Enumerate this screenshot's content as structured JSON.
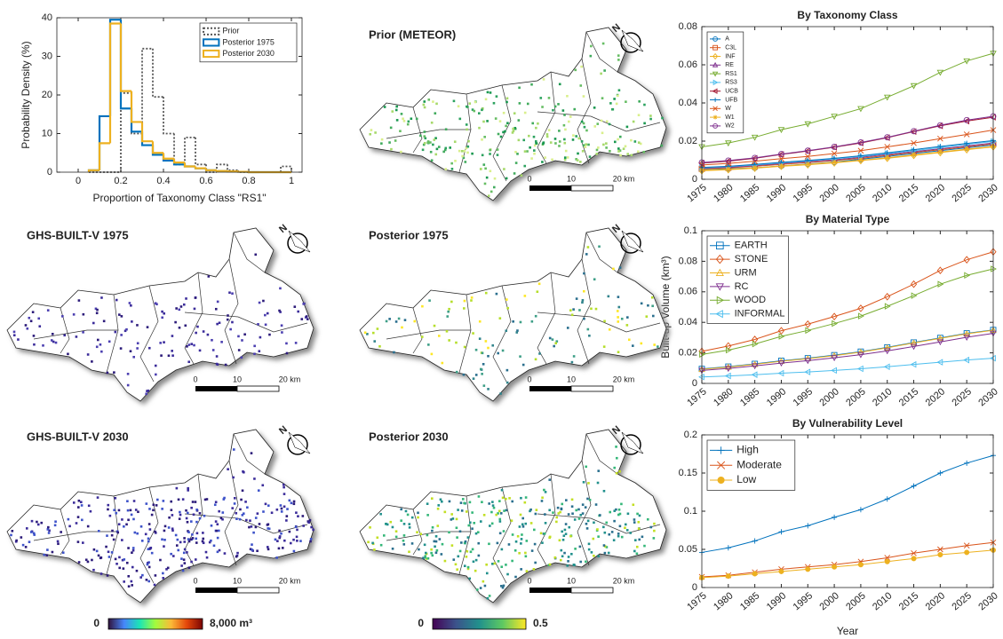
{
  "chart_data": [
    {
      "type": "histogram",
      "xlabel": "Proportion of Taxonomy Class \"RS1\"",
      "ylabel": "Probability Density (%)",
      "bins": [
        0.05,
        0.1,
        0.15,
        0.2,
        0.25,
        0.3,
        0.35,
        0.4,
        0.45,
        0.5,
        0.55,
        0.6,
        0.65,
        0.7,
        0.75,
        0.8,
        0.85,
        0.9,
        0.95,
        1
      ],
      "series": [
        {
          "name": "Prior",
          "color": "#555555",
          "linestyle": "dotted",
          "values": [
            0,
            0,
            0,
            20.5,
            10,
            32,
            19.5,
            10,
            2,
            9,
            2,
            0,
            2,
            0.5,
            0,
            0,
            0,
            0,
            1.5
          ]
        },
        {
          "name": "Posterior 1975",
          "color": "#0072BD",
          "values": [
            0.5,
            14.5,
            39.5,
            16.5,
            10.5,
            7,
            4.5,
            3,
            2,
            1.5,
            1,
            0.5,
            0.3,
            0.2,
            0.1,
            0,
            0,
            0,
            0
          ]
        },
        {
          "name": "Posterior 2030",
          "color": "#EDB120",
          "values": [
            0.5,
            7.5,
            38.5,
            21,
            13,
            8,
            5,
            3.5,
            2.5,
            1.5,
            1,
            0.5,
            0.3,
            0.2,
            0.1,
            0,
            0,
            0,
            0
          ]
        }
      ],
      "xlim": [
        -0.1,
        1.05
      ],
      "ylim": [
        0,
        40
      ],
      "xticks": [
        0,
        0.2,
        0.4,
        0.6,
        0.8,
        1
      ],
      "yticks": [
        0,
        10,
        20,
        30,
        40
      ],
      "legend": "northeast"
    },
    {
      "type": "line",
      "title": "By Taxonomy Class",
      "x": [
        1975,
        1980,
        1985,
        1990,
        1995,
        2000,
        2005,
        2010,
        2015,
        2020,
        2025,
        2030
      ],
      "series": [
        {
          "name": "A",
          "color": "#0072BD",
          "marker": "o",
          "values": [
            0.005,
            0.0055,
            0.006,
            0.007,
            0.008,
            0.009,
            0.0105,
            0.012,
            0.0135,
            0.015,
            0.0165,
            0.018
          ]
        },
        {
          "name": "C3L",
          "color": "#D95319",
          "marker": "s",
          "values": [
            0.0055,
            0.006,
            0.0068,
            0.0078,
            0.0088,
            0.0098,
            0.011,
            0.0125,
            0.014,
            0.0155,
            0.017,
            0.0185
          ]
        },
        {
          "name": "INF",
          "color": "#EDB120",
          "marker": "d",
          "values": [
            0.0045,
            0.005,
            0.0058,
            0.0068,
            0.0076,
            0.0086,
            0.0098,
            0.011,
            0.0125,
            0.014,
            0.0155,
            0.017
          ]
        },
        {
          "name": "RE",
          "color": "#7E2F8E",
          "marker": "^",
          "values": [
            0.0058,
            0.0063,
            0.0072,
            0.0082,
            0.0092,
            0.0102,
            0.0115,
            0.013,
            0.0145,
            0.016,
            0.0175,
            0.019
          ]
        },
        {
          "name": "RS1",
          "color": "#77AC30",
          "marker": "v",
          "values": [
            0.017,
            0.019,
            0.022,
            0.026,
            0.029,
            0.033,
            0.037,
            0.043,
            0.049,
            0.056,
            0.062,
            0.066
          ]
        },
        {
          "name": "RS3",
          "color": "#4DBEEE",
          "marker": ">",
          "values": [
            0.006,
            0.0066,
            0.0075,
            0.0086,
            0.0096,
            0.0107,
            0.012,
            0.0135,
            0.015,
            0.0167,
            0.0183,
            0.0198
          ]
        },
        {
          "name": "UCB",
          "color": "#A2142F",
          "marker": "<",
          "values": [
            0.0085,
            0.0095,
            0.011,
            0.013,
            0.0148,
            0.0168,
            0.019,
            0.0218,
            0.025,
            0.028,
            0.0305,
            0.0325
          ]
        },
        {
          "name": "UFB",
          "color": "#0072BD",
          "marker": "+",
          "values": [
            0.0062,
            0.0068,
            0.0078,
            0.0089,
            0.0099,
            0.011,
            0.0123,
            0.0139,
            0.0155,
            0.0172,
            0.0188,
            0.0203
          ]
        },
        {
          "name": "W",
          "color": "#D95319",
          "marker": "x",
          "values": [
            0.0075,
            0.0083,
            0.0095,
            0.0108,
            0.012,
            0.0135,
            0.015,
            0.017,
            0.019,
            0.0213,
            0.0235,
            0.0258
          ]
        },
        {
          "name": "W1",
          "color": "#EDB120",
          "marker": "*",
          "values": [
            0.0048,
            0.0053,
            0.006,
            0.007,
            0.0079,
            0.0089,
            0.01,
            0.0113,
            0.0128,
            0.0143,
            0.0158,
            0.0172
          ]
        },
        {
          "name": "W2",
          "color": "#7E2F8E",
          "marker": "o",
          "values": [
            0.0088,
            0.0098,
            0.0112,
            0.0132,
            0.015,
            0.017,
            0.0193,
            0.022,
            0.0252,
            0.0283,
            0.031,
            0.033
          ]
        }
      ],
      "xlim": [
        1975,
        2030
      ],
      "ylim": [
        0,
        0.08
      ],
      "xticks": [
        1975,
        1980,
        1985,
        1990,
        1995,
        2000,
        2005,
        2010,
        2015,
        2020,
        2025,
        2030
      ],
      "yticks": [
        0,
        0.02,
        0.04,
        0.06,
        0.08
      ],
      "legend": "northwest"
    },
    {
      "type": "line",
      "title": "By Material Type",
      "ylabel": "Built-up Volume (km³)",
      "x": [
        1975,
        1980,
        1985,
        1990,
        1995,
        2000,
        2005,
        2010,
        2015,
        2020,
        2025,
        2030
      ],
      "series": [
        {
          "name": "EARTH",
          "color": "#0072BD",
          "marker": "s",
          "values": [
            0.0095,
            0.011,
            0.0128,
            0.0148,
            0.0165,
            0.0185,
            0.0208,
            0.0236,
            0.0268,
            0.0298,
            0.0328,
            0.035
          ]
        },
        {
          "name": "STONE",
          "color": "#D95319",
          "marker": "d",
          "values": [
            0.021,
            0.0245,
            0.0288,
            0.0345,
            0.0388,
            0.0438,
            0.0492,
            0.0568,
            0.065,
            0.074,
            0.081,
            0.0862
          ]
        },
        {
          "name": "URM",
          "color": "#EDB120",
          "marker": "^",
          "values": [
            0.0092,
            0.0107,
            0.0125,
            0.0145,
            0.0162,
            0.0182,
            0.0205,
            0.0233,
            0.0265,
            0.0295,
            0.0325,
            0.0348
          ]
        },
        {
          "name": "RC",
          "color": "#7E2F8E",
          "marker": "v",
          "values": [
            0.0085,
            0.0098,
            0.0115,
            0.0133,
            0.0149,
            0.0168,
            0.0188,
            0.0213,
            0.0242,
            0.0272,
            0.0302,
            0.0328
          ]
        },
        {
          "name": "WOOD",
          "color": "#77AC30",
          "marker": ">",
          "values": [
            0.019,
            0.0218,
            0.0258,
            0.0308,
            0.0347,
            0.0392,
            0.0441,
            0.0505,
            0.0575,
            0.065,
            0.0708,
            0.075
          ]
        },
        {
          "name": "INFORMAL",
          "color": "#4DBEEE",
          "marker": "<",
          "values": [
            0.0042,
            0.0049,
            0.0057,
            0.0067,
            0.0075,
            0.0085,
            0.0096,
            0.0109,
            0.0124,
            0.0139,
            0.0153,
            0.0165
          ]
        }
      ],
      "xlim": [
        1975,
        2030
      ],
      "ylim": [
        0,
        0.1
      ],
      "xticks": [
        1975,
        1980,
        1985,
        1990,
        1995,
        2000,
        2005,
        2010,
        2015,
        2020,
        2025,
        2030
      ],
      "yticks": [
        0,
        0.02,
        0.04,
        0.06,
        0.08,
        0.1
      ],
      "legend": "northwest"
    },
    {
      "type": "line",
      "title": "By Vulnerability Level",
      "xlabel": "Year",
      "x": [
        1975,
        1980,
        1985,
        1990,
        1995,
        2000,
        2005,
        2010,
        2015,
        2020,
        2025,
        2030
      ],
      "series": [
        {
          "name": "High",
          "color": "#0072BD",
          "marker": "+",
          "values": [
            0.046,
            0.052,
            0.061,
            0.073,
            0.081,
            0.092,
            0.102,
            0.116,
            0.133,
            0.15,
            0.163,
            0.173
          ]
        },
        {
          "name": "Moderate",
          "color": "#D95319",
          "marker": "x",
          "values": [
            0.014,
            0.016,
            0.02,
            0.024,
            0.027,
            0.03,
            0.034,
            0.039,
            0.045,
            0.05,
            0.055,
            0.059
          ]
        },
        {
          "name": "Low",
          "color": "#EDB120",
          "marker": ".",
          "values": [
            0.013,
            0.015,
            0.018,
            0.021,
            0.024,
            0.027,
            0.03,
            0.034,
            0.038,
            0.043,
            0.046,
            0.049
          ]
        }
      ],
      "xlim": [
        1975,
        2030
      ],
      "ylim": [
        0,
        0.2
      ],
      "xticks": [
        1975,
        1980,
        1985,
        1990,
        1995,
        2000,
        2005,
        2010,
        2015,
        2020,
        2025,
        2030
      ],
      "yticks": [
        0,
        0.05,
        0.1,
        0.15,
        0.2
      ],
      "legend": "northwest"
    }
  ],
  "maps": [
    {
      "title": "Prior (METEOR)"
    },
    {
      "title": "GHS-BUILT-V 1975"
    },
    {
      "title": "Posterior 1975"
    },
    {
      "title": "GHS-BUILT-V 2030"
    },
    {
      "title": "Posterior 2030"
    }
  ],
  "scale_bar": {
    "labels": [
      "0",
      "10",
      "20 km"
    ]
  },
  "north_label": "N",
  "colorbars": [
    {
      "labels": [
        "0",
        "8,000 m³"
      ],
      "colors": [
        "#30123b",
        "#4686fb",
        "#1be5b5",
        "#a4fc3c",
        "#fbb938",
        "#e4460a",
        "#7a0403"
      ]
    },
    {
      "labels": [
        "0",
        "0.5"
      ],
      "colors": [
        "#440154",
        "#3b528b",
        "#21918c",
        "#5ec962",
        "#fde725"
      ]
    }
  ]
}
